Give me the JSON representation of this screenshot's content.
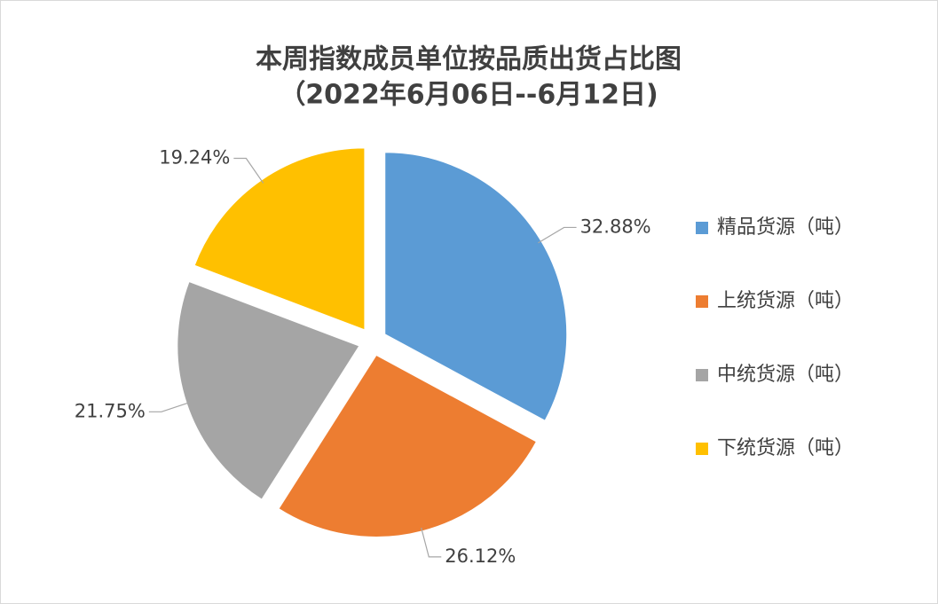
{
  "chart_data": {
    "type": "pie",
    "title": "本周指数成员单位按品质出货占比图",
    "subtitle": "（2022年6月06日--6月12日)",
    "categories": [
      "精品货源（吨）",
      "上统货源（吨）",
      "中统货源（吨）",
      "下统货源（吨）"
    ],
    "values": [
      32.88,
      26.12,
      21.75,
      19.24
    ],
    "value_labels": [
      "32.88%",
      "26.12%",
      "21.75%",
      "19.24%"
    ],
    "colors": [
      "#5b9bd5",
      "#ed7d31",
      "#a5a5a5",
      "#ffc000"
    ],
    "legend": "right"
  }
}
